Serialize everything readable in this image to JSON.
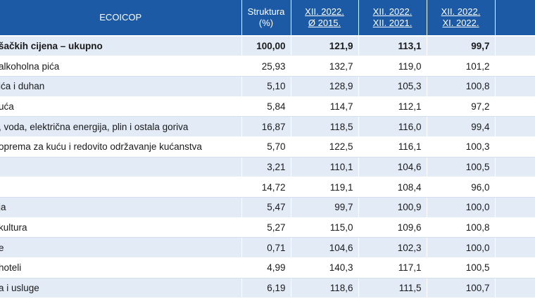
{
  "header": {
    "ecoicop": "ECOICOP",
    "struktura": [
      "Struktura",
      "(%)"
    ],
    "col1": [
      "XII. 2022.",
      "Ø 2015."
    ],
    "col2": [
      "XII. 2022.",
      "XII. 2021."
    ],
    "col3": [
      "XII. 2022.",
      "XI. 2022."
    ]
  },
  "rows": [
    {
      "label": "šačkih cijena – ukupno",
      "struktura": "100,00",
      "v1": "121,9",
      "v2": "113,1",
      "v3": "99,7",
      "total": true
    },
    {
      "label": "alkoholna pića",
      "struktura": "25,93",
      "v1": "132,7",
      "v2": "119,0",
      "v3": "101,2"
    },
    {
      "label": "ića i duhan",
      "struktura": "5,10",
      "v1": "128,9",
      "v2": "105,3",
      "v3": "100,8"
    },
    {
      "label": "uća",
      "struktura": "5,84",
      "v1": "114,7",
      "v2": "112,1",
      "v3": "97,2"
    },
    {
      "label": ", voda, električna energija, plin i ostala goriva",
      "struktura": "16,87",
      "v1": "118,5",
      "v2": "116,0",
      "v3": "99,4"
    },
    {
      "label": "oprema za kuću i redovito održavanje kućanstva",
      "struktura": "5,70",
      "v1": "122,5",
      "v2": "116,1",
      "v3": "100,3"
    },
    {
      "label": "",
      "struktura": "3,21",
      "v1": "110,1",
      "v2": "104,6",
      "v3": "100,5"
    },
    {
      "label": "",
      "struktura": "14,72",
      "v1": "119,1",
      "v2": "108,4",
      "v3": "96,0"
    },
    {
      "label": "ja",
      "struktura": "5,47",
      "v1": "99,7",
      "v2": "100,9",
      "v3": "100,0"
    },
    {
      "label": " kultura",
      "struktura": "5,27",
      "v1": "115,0",
      "v2": "109,6",
      "v3": "100,8"
    },
    {
      "label": "e",
      "struktura": "0,71",
      "v1": "104,6",
      "v2": "102,3",
      "v3": "100,0"
    },
    {
      "label": " hoteli",
      "struktura": "4,99",
      "v1": "140,3",
      "v2": "117,1",
      "v3": "100,5"
    },
    {
      "label": "a i usluge",
      "struktura": "6,19",
      "v1": "118,6",
      "v2": "111,5",
      "v3": "100,7"
    }
  ]
}
